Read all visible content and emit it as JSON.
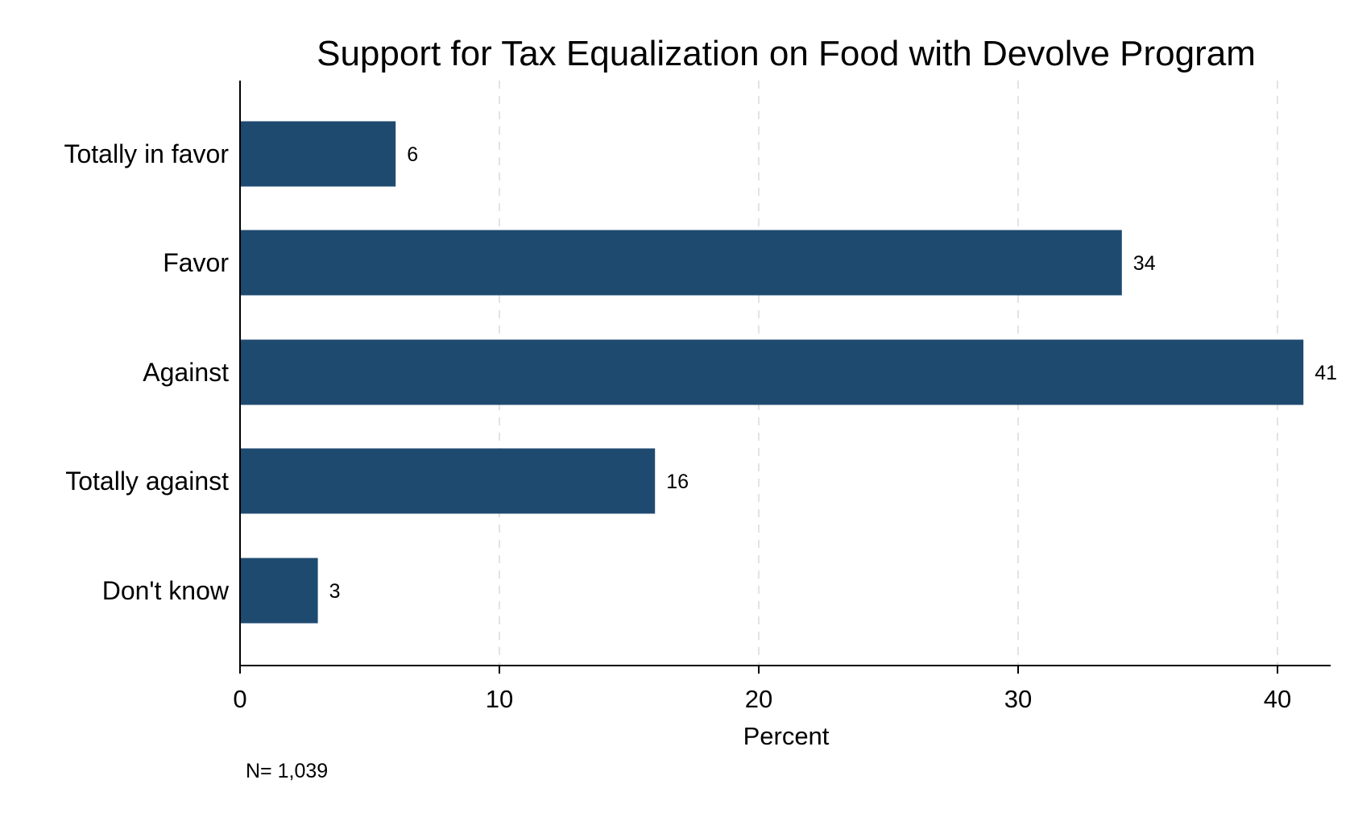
{
  "chart_data": {
    "type": "bar",
    "orientation": "horizontal",
    "title": "Support for Tax Equalization on Food with Devolve Program",
    "xlabel": "Percent",
    "ylabel": "",
    "categories": [
      "Totally in favor",
      "Favor",
      "Against",
      "Totally against",
      "Don't know"
    ],
    "values": [
      6,
      34,
      41,
      16,
      3
    ],
    "data_labels": [
      "6",
      "34",
      "41",
      "16",
      "3"
    ],
    "xlim": [
      0,
      42
    ],
    "xticks": [
      0,
      10,
      20,
      30,
      40
    ],
    "xtick_labels": [
      "0",
      "10",
      "20",
      "30",
      "40"
    ],
    "grid": "vertical dashed",
    "bar_color": "#1f4a70",
    "note": "N= 1,039"
  }
}
